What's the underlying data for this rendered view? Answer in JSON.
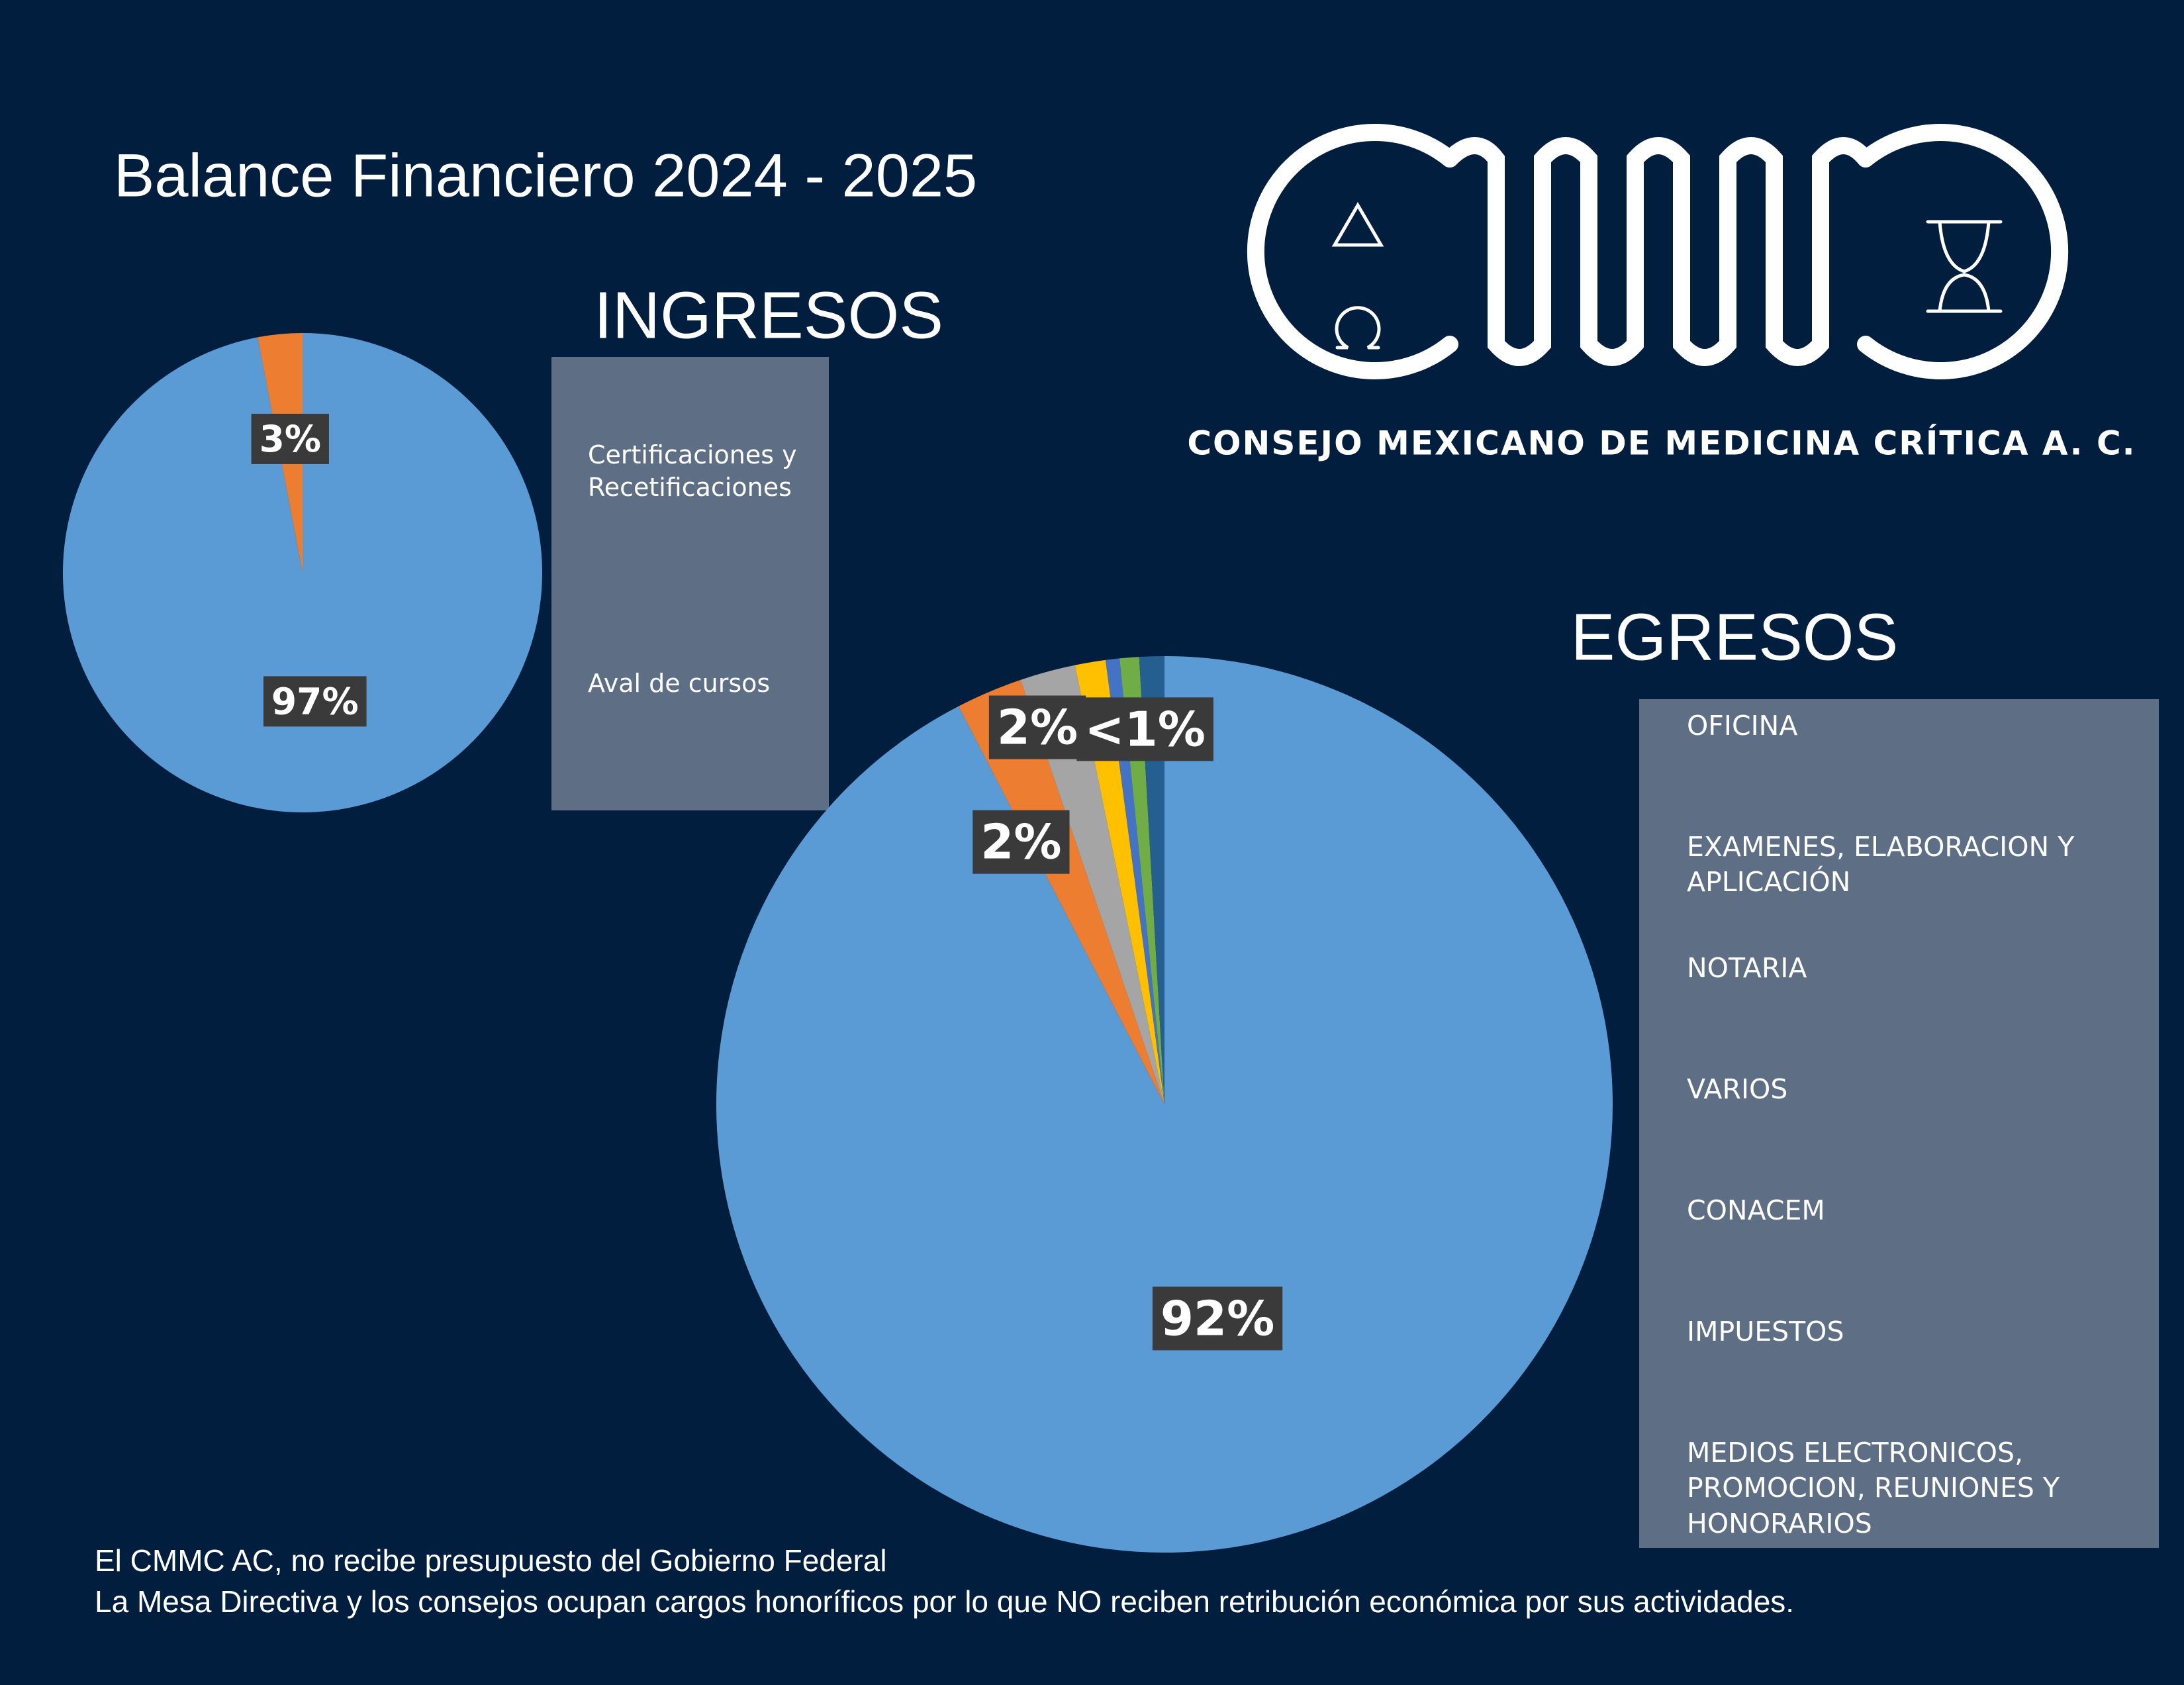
{
  "header": {
    "title": "Balance Financiero 2024 - 2025"
  },
  "logo": {
    "name": "CONSEJO MEXICANO DE MEDICINA CRÍTICA A. C."
  },
  "chart_data": [
    {
      "type": "pie",
      "title": "INGRESOS",
      "categories": [
        "Certificaciones y Recetificaciones",
        "Aval de cursos"
      ],
      "values": [
        97,
        3
      ],
      "value_labels": [
        "97%",
        "3%"
      ],
      "colors": [
        "#5b9bd5",
        "#ed7d31"
      ]
    },
    {
      "type": "pie",
      "title": "EGRESOS",
      "categories": [
        "OFICINA",
        "EXAMENES, ELABORACION Y APLICACIÓN",
        "NOTARIA",
        "VARIOS",
        "CONACEM",
        "IMPUESTOS",
        "MEDIOS ELECTRONICOS, PROMOCION, REUNIONES Y HONORARIOS"
      ],
      "values": [
        92.4,
        2.4,
        2.0,
        1.1,
        0.5,
        0.7,
        0.9
      ],
      "value_labels": [
        "92%",
        "2%",
        "2%",
        null,
        null,
        null,
        "<1%"
      ],
      "colors": [
        "#5b9bd5",
        "#ed7d31",
        "#a5a5a5",
        "#ffc000",
        "#4472c4",
        "#70ad47",
        "#255e91"
      ]
    }
  ],
  "footer": {
    "lines": [
      "El CMMC AC, no recibe presupuesto del Gobierno Federal",
      "La Mesa Directiva y los consejos ocupan cargos honoríficos por lo que NO reciben retribución económica por sus actividades."
    ]
  }
}
